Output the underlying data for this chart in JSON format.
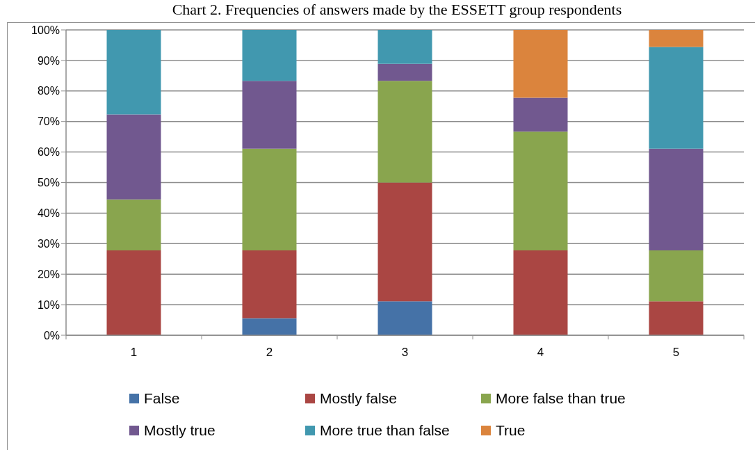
{
  "chart_data": {
    "type": "bar",
    "title": "Chart 2. Frequencies of answers made by the ESSETT group respondents",
    "categories": [
      "1",
      "2",
      "3",
      "4",
      "5"
    ],
    "series": [
      {
        "name": "False",
        "color": "#4572a7",
        "values": [
          0,
          5.6,
          11.1,
          0,
          0
        ]
      },
      {
        "name": "Mostly false",
        "color": "#aa4643",
        "values": [
          27.8,
          22.2,
          38.9,
          27.8,
          11.1
        ]
      },
      {
        "name": "More false than true",
        "color": "#89a54e",
        "values": [
          16.7,
          33.3,
          33.3,
          38.9,
          16.7
        ]
      },
      {
        "name": "Mostly true",
        "color": "#71588f",
        "values": [
          27.8,
          22.2,
          5.6,
          11.1,
          33.3
        ]
      },
      {
        "name": "More true than false",
        "color": "#4198af",
        "values": [
          27.8,
          16.7,
          11.1,
          0,
          33.3
        ]
      },
      {
        "name": "True",
        "color": "#db843d",
        "values": [
          0,
          0,
          0,
          22.2,
          5.6
        ]
      }
    ],
    "stacked": true,
    "ylim": [
      0,
      100
    ],
    "yticks": [
      {
        "value": 0,
        "label": "0%"
      },
      {
        "value": 10,
        "label": "10%"
      },
      {
        "value": 20,
        "label": "20%"
      },
      {
        "value": 30,
        "label": "30%"
      },
      {
        "value": 40,
        "label": "40%"
      },
      {
        "value": 50,
        "label": "50%"
      },
      {
        "value": 60,
        "label": "60%"
      },
      {
        "value": 70,
        "label": "70%"
      },
      {
        "value": 80,
        "label": "80%"
      },
      {
        "value": 90,
        "label": "90%"
      },
      {
        "value": 100,
        "label": "100%"
      }
    ],
    "grid": "y",
    "legend": "bottom"
  }
}
